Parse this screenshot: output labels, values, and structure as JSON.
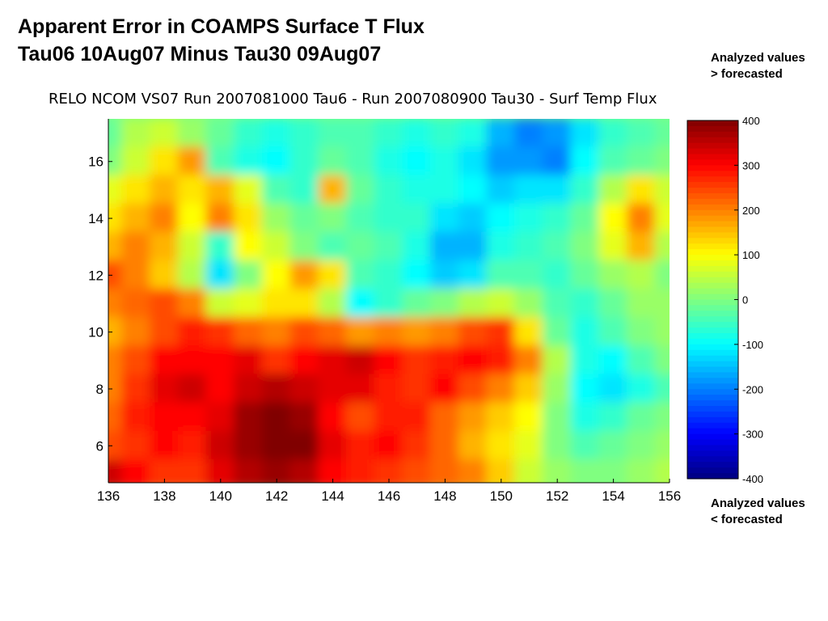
{
  "slide": {
    "title_line1": "Apparent Error in COAMPS Surface T Flux",
    "title_line2": "Tau06 10Aug07 Minus Tau30 09Aug07",
    "note_top_line1": "Analyzed values",
    "note_top_line2": "> forecasted",
    "note_bottom_line1": "Analyzed values",
    "note_bottom_line2": "< forecasted"
  },
  "chart_data": {
    "type": "heatmap",
    "title": "RELO NCOM VS07 Run 2007081000 Tau6 - Run 2007080900 Tau30 - Surf Temp Flux",
    "xlabel": "",
    "ylabel": "",
    "xlim": [
      136,
      156
    ],
    "ylim": [
      4.7,
      17.5
    ],
    "x_ticks": [
      136,
      138,
      140,
      142,
      144,
      146,
      148,
      150,
      152,
      154,
      156
    ],
    "y_ticks": [
      6,
      8,
      10,
      12,
      14,
      16
    ],
    "x": [
      136,
      137,
      138,
      139,
      140,
      141,
      142,
      143,
      144,
      145,
      146,
      147,
      148,
      149,
      150,
      151,
      152,
      153,
      154,
      155,
      156
    ],
    "y": [
      17,
      16,
      15,
      14,
      13,
      12,
      11,
      10,
      9,
      8,
      7,
      6,
      5
    ],
    "z": [
      [
        -20,
        40,
        60,
        20,
        -20,
        -60,
        -80,
        -60,
        -40,
        -40,
        -60,
        -80,
        -60,
        -80,
        -160,
        -200,
        -180,
        -120,
        -60,
        -40,
        -20
      ],
      [
        0,
        60,
        120,
        180,
        -40,
        -80,
        -100,
        -60,
        -20,
        -40,
        -80,
        -100,
        -80,
        -120,
        -180,
        -180,
        -200,
        -100,
        -40,
        -20,
        0
      ],
      [
        80,
        120,
        160,
        120,
        160,
        80,
        -40,
        -60,
        160,
        -20,
        -60,
        -80,
        -80,
        -100,
        -140,
        -120,
        -120,
        -60,
        40,
        120,
        60
      ],
      [
        120,
        160,
        200,
        100,
        200,
        120,
        20,
        -20,
        0,
        -40,
        -60,
        -60,
        -120,
        -140,
        -100,
        -80,
        -60,
        -20,
        100,
        200,
        80
      ],
      [
        160,
        200,
        160,
        60,
        -60,
        100,
        60,
        0,
        -40,
        -20,
        -40,
        -80,
        -160,
        -160,
        -80,
        -60,
        -40,
        0,
        80,
        160,
        40
      ],
      [
        240,
        200,
        140,
        40,
        -120,
        0,
        100,
        180,
        120,
        -40,
        -60,
        -100,
        -140,
        -120,
        -40,
        -40,
        -60,
        -20,
        20,
        40,
        0
      ],
      [
        200,
        220,
        240,
        200,
        60,
        80,
        120,
        120,
        40,
        -100,
        -60,
        -20,
        0,
        40,
        60,
        20,
        -40,
        -60,
        -20,
        20,
        20
      ],
      [
        160,
        200,
        240,
        280,
        260,
        220,
        200,
        240,
        220,
        180,
        200,
        180,
        200,
        240,
        260,
        120,
        -20,
        -80,
        -40,
        0,
        20
      ],
      [
        200,
        240,
        300,
        300,
        300,
        320,
        260,
        300,
        320,
        340,
        300,
        260,
        280,
        300,
        280,
        200,
        40,
        -80,
        -100,
        -40,
        0
      ],
      [
        200,
        260,
        320,
        340,
        300,
        340,
        360,
        340,
        320,
        320,
        280,
        260,
        300,
        240,
        200,
        140,
        20,
        -100,
        -120,
        -80,
        -40
      ],
      [
        220,
        280,
        300,
        300,
        320,
        380,
        400,
        380,
        300,
        240,
        280,
        280,
        220,
        180,
        140,
        100,
        0,
        -80,
        -60,
        -20,
        0
      ],
      [
        240,
        260,
        300,
        280,
        340,
        380,
        400,
        400,
        320,
        280,
        300,
        260,
        220,
        160,
        120,
        80,
        0,
        -40,
        -20,
        0,
        20
      ],
      [
        340,
        300,
        260,
        260,
        320,
        360,
        380,
        360,
        300,
        280,
        260,
        240,
        220,
        200,
        140,
        60,
        20,
        0,
        0,
        20,
        40
      ]
    ],
    "colorbar": {
      "min": -400,
      "max": 400,
      "ticks": [
        400,
        300,
        200,
        100,
        0,
        -100,
        -200,
        -300,
        -400
      ],
      "colormap": "jet"
    }
  }
}
